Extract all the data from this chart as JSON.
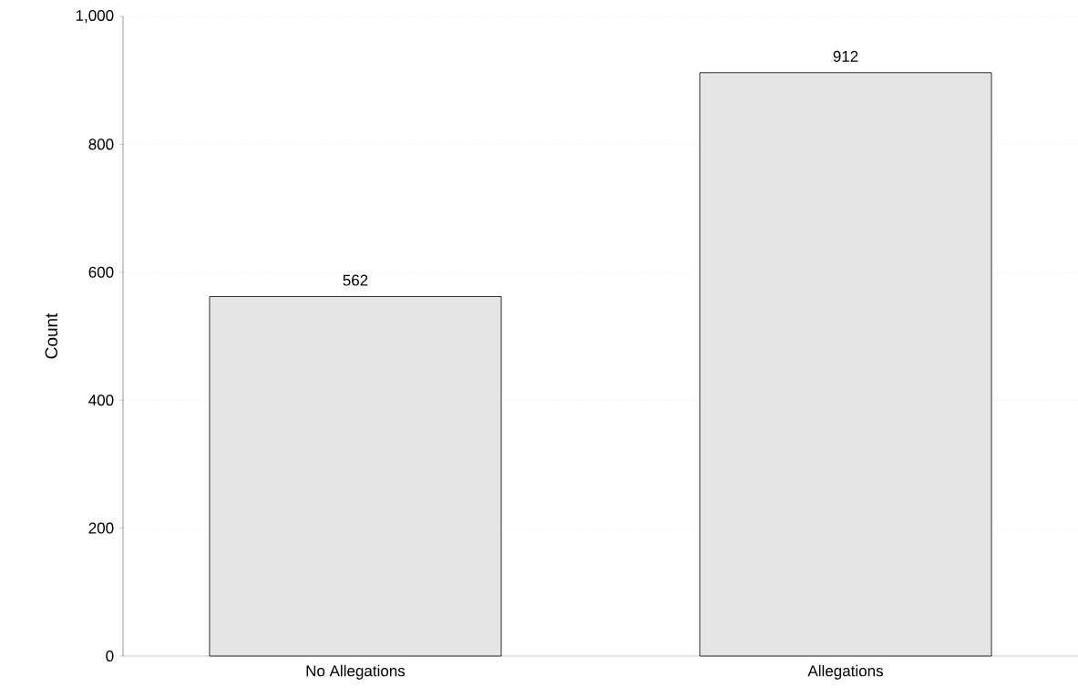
{
  "chart_data": {
    "type": "bar",
    "ylabel": "Count",
    "categories": [
      "No Allegations",
      "Allegations"
    ],
    "values": [
      562,
      912
    ],
    "color": "#e5e5e5",
    "ylim": [
      0,
      1000
    ],
    "yticks": [
      0,
      200,
      400,
      600,
      800,
      {
        "value": 1000,
        "label": "1,000"
      }
    ],
    "grid": "y",
    "data_labels": true
  }
}
